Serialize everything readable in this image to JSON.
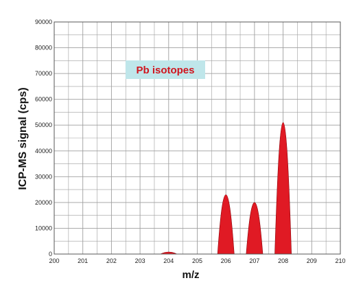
{
  "chart_data": {
    "type": "area",
    "title": "",
    "xlabel": "m/z",
    "ylabel": "ICP-MS signal (cps)",
    "xlim": [
      200,
      210
    ],
    "ylim": [
      0,
      90000
    ],
    "x_ticks": [
      "200",
      "201",
      "202",
      "203",
      "204",
      "205",
      "206",
      "207",
      "208",
      "209",
      "210"
    ],
    "y_ticks": [
      "0",
      "10000",
      "20000",
      "30000",
      "40000",
      "50000",
      "60000",
      "70000",
      "80000",
      "90000"
    ],
    "grid": true,
    "annotation": "Pb isotopes",
    "series": [
      {
        "color": "#e01a24",
        "peaks": [
          {
            "x": 204,
            "y": 800
          },
          {
            "x": 206,
            "y": 23000
          },
          {
            "x": 207,
            "y": 20000
          },
          {
            "x": 208,
            "y": 51000
          }
        ]
      }
    ]
  },
  "colors": {
    "peak_fill": "#e01a24",
    "peak_edge": "#8a0008",
    "grid": "#9e9e9e",
    "annotation_bg": "#bfe6ea",
    "annotation_text": "#d0141d"
  }
}
